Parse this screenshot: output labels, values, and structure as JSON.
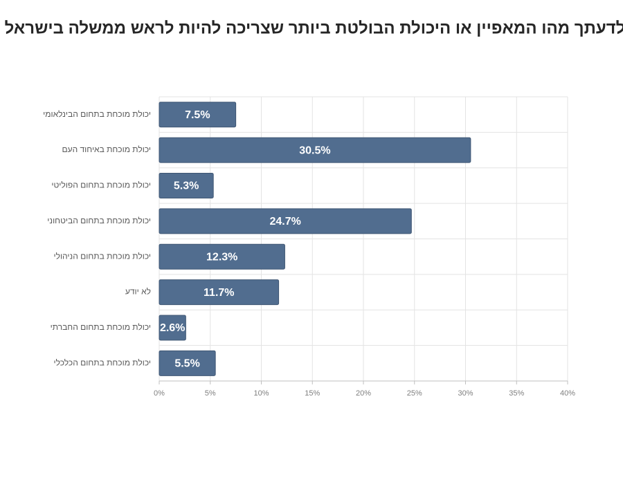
{
  "chart_data": {
    "type": "bar",
    "orientation": "horizontal",
    "title": "לדעתך מהו המאפיין או היכולת הבולטת ביותר שצריכה להיות לראש ממשלה בישראל",
    "categories": [
      "יכולת מוכחת בתחום הבינלאומי",
      "יכולת מוכחת באיחוד העם",
      "יכולת מוכחת בתחום הפוליטי",
      "יכולת מוכחת בתחום הביטחוני",
      "יכולת מוכחת בתחום הניהולי",
      "לא יודע",
      "יכולת מוכחת בתחום החברתי",
      "יכולת מוכחת בתחום הכלכלי"
    ],
    "values": [
      7.5,
      30.5,
      5.3,
      24.7,
      12.3,
      11.7,
      2.6,
      5.5
    ],
    "value_labels": [
      "7.5%",
      "30.5%",
      "5.3%",
      "24.7%",
      "12.3%",
      "11.7%",
      "2.6%",
      "5.5%"
    ],
    "color": "#516d8f",
    "xlim": [
      0,
      40
    ],
    "xticks": [
      {
        "value": 0,
        "label": "0%"
      },
      {
        "value": 5,
        "label": "5%"
      },
      {
        "value": 10,
        "label": "10%"
      },
      {
        "value": 15,
        "label": "15%"
      },
      {
        "value": 20,
        "label": "20%"
      },
      {
        "value": 25,
        "label": "25%"
      },
      {
        "value": 30,
        "label": "30%"
      },
      {
        "value": 35,
        "label": "35%"
      },
      {
        "value": 40,
        "label": "40%"
      }
    ],
    "grid": true
  }
}
